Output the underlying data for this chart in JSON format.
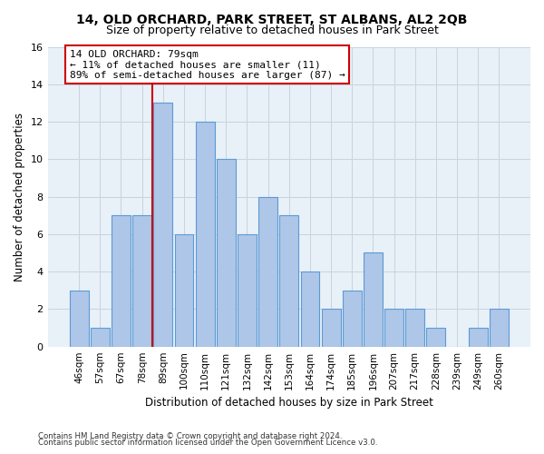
{
  "title": "14, OLD ORCHARD, PARK STREET, ST ALBANS, AL2 2QB",
  "subtitle": "Size of property relative to detached houses in Park Street",
  "xlabel": "Distribution of detached houses by size in Park Street",
  "ylabel": "Number of detached properties",
  "footnote1": "Contains HM Land Registry data © Crown copyright and database right 2024.",
  "footnote2": "Contains public sector information licensed under the Open Government Licence v3.0.",
  "categories": [
    "46sqm",
    "57sqm",
    "67sqm",
    "78sqm",
    "89sqm",
    "100sqm",
    "110sqm",
    "121sqm",
    "132sqm",
    "142sqm",
    "153sqm",
    "164sqm",
    "174sqm",
    "185sqm",
    "196sqm",
    "207sqm",
    "217sqm",
    "228sqm",
    "239sqm",
    "249sqm",
    "260sqm"
  ],
  "values": [
    3,
    1,
    7,
    7,
    13,
    6,
    12,
    10,
    6,
    8,
    7,
    4,
    2,
    3,
    5,
    2,
    2,
    1,
    0,
    1,
    2
  ],
  "bar_color": "#aec6e8",
  "bar_edge_color": "#5b9bd5",
  "highlight_color": "#cc0000",
  "annotation_title": "14 OLD ORCHARD: 79sqm",
  "annotation_line1": "← 11% of detached houses are smaller (11)",
  "annotation_line2": "89% of semi-detached houses are larger (87) →",
  "annotation_box_edge": "#cc0000",
  "ylim": [
    0,
    16
  ],
  "yticks": [
    0,
    2,
    4,
    6,
    8,
    10,
    12,
    14,
    16
  ],
  "grid_color": "#c8d4e0",
  "bg_color": "#e8f0f8",
  "title_fontsize": 10,
  "subtitle_fontsize": 9,
  "axis_label_fontsize": 8.5,
  "tick_fontsize": 8,
  "annot_fontsize": 8
}
